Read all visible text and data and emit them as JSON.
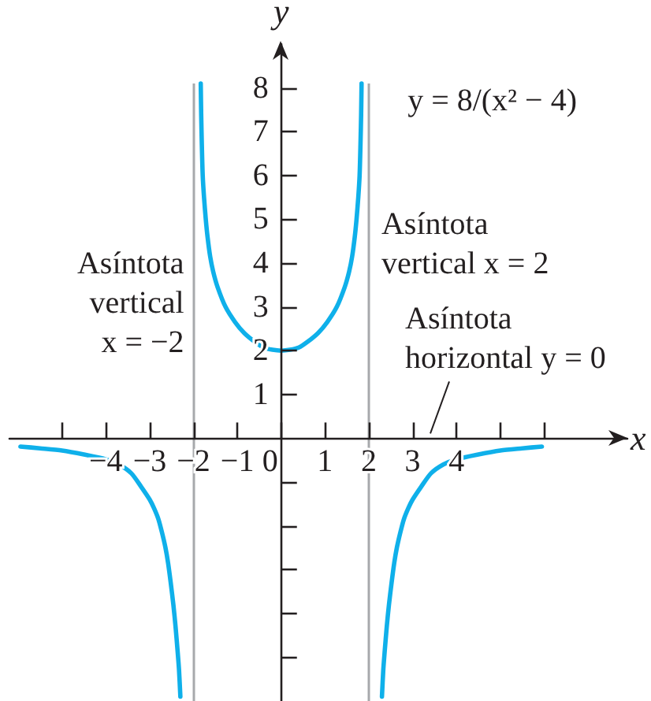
{
  "chart_data": {
    "type": "line",
    "xlabel": "x",
    "ylabel": "y",
    "xlim": [
      -6.2,
      7.9
    ],
    "ylim": [
      -6,
      9
    ],
    "xticks": [
      {
        "value": -5,
        "label": null
      },
      {
        "value": -4,
        "label": "−4"
      },
      {
        "value": -3,
        "label": "−3"
      },
      {
        "value": -2,
        "label": "−2"
      },
      {
        "value": -1,
        "label": "−1"
      },
      0,
      1,
      2,
      3,
      4,
      {
        "value": 5,
        "label": null
      },
      {
        "value": 6,
        "label": null
      }
    ],
    "yticks": [
      {
        "value": -5,
        "label": null
      },
      {
        "value": -4,
        "label": null
      },
      {
        "value": -3,
        "label": null
      },
      {
        "value": -2,
        "label": null
      },
      {
        "value": -1,
        "label": null
      },
      1,
      2,
      3,
      4,
      5,
      6,
      7,
      8
    ],
    "series": [
      {
        "color": "#0fb0ea",
        "x": [
          -5.95,
          -5.5,
          -5.0,
          -4.5,
          -4.0,
          -3.7,
          -3.42,
          -3.2,
          -3.0,
          -2.9,
          -2.8,
          -2.72,
          -2.64,
          -2.58,
          -2.52,
          -2.46,
          -2.41,
          -2.36,
          -2.33,
          -2.3
        ],
        "values": [
          -0.19,
          -0.23,
          -0.28,
          -0.37,
          -0.48,
          -0.6,
          -0.8,
          -1.1,
          -1.4,
          -1.6,
          -1.85,
          -2.15,
          -2.5,
          -2.85,
          -3.3,
          -3.8,
          -4.3,
          -4.9,
          -5.3,
          -5.9
        ]
      },
      {
        "color": "#0fb0ea",
        "x": [
          -1.835,
          -1.825,
          -1.81,
          -1.79,
          -1.76,
          -1.72,
          -1.68,
          -1.62,
          -1.55,
          -1.45,
          -1.27,
          -1.05,
          -0.84,
          -0.6,
          -0.4,
          -0.2,
          0,
          0.2,
          0.4,
          0.6,
          0.84,
          1.05,
          1.27,
          1.45,
          1.55,
          1.62,
          1.68,
          1.72,
          1.76,
          1.79,
          1.81,
          1.825,
          1.835
        ],
        "values": [
          8.1,
          7.4,
          6.7,
          6.0,
          5.5,
          5.0,
          4.6,
          4.15,
          3.8,
          3.45,
          3.0,
          2.65,
          2.4,
          2.2,
          2.07,
          2.02,
          2.0,
          2.02,
          2.07,
          2.2,
          2.4,
          2.65,
          3.0,
          3.45,
          3.8,
          4.15,
          4.6,
          5.0,
          5.5,
          6.0,
          6.7,
          7.4,
          8.1
        ]
      },
      {
        "color": "#0fb0ea",
        "x": [
          2.3,
          2.33,
          2.36,
          2.41,
          2.46,
          2.52,
          2.58,
          2.64,
          2.72,
          2.8,
          2.9,
          3.0,
          3.2,
          3.42,
          3.7,
          4.0,
          4.5,
          5.0,
          5.5,
          5.95
        ],
        "values": [
          -5.9,
          -5.3,
          -4.9,
          -4.3,
          -3.8,
          -3.3,
          -2.85,
          -2.5,
          -2.15,
          -1.85,
          -1.6,
          -1.4,
          -1.1,
          -0.8,
          -0.6,
          -0.48,
          -0.37,
          -0.28,
          -0.23,
          -0.19
        ]
      }
    ],
    "ref_lines": [
      {
        "axis": "x",
        "value": -2,
        "color": "#a7a9ac"
      },
      {
        "axis": "x",
        "value": 2,
        "color": "#a7a9ac"
      }
    ],
    "annotations": [
      "Asíntota vertical x = −2",
      "Asíntota vertical x = 2",
      "y = 8/(x² − 4)",
      "Asíntota horizontal y = 0"
    ],
    "marker": "none",
    "line_style": "solid"
  }
}
